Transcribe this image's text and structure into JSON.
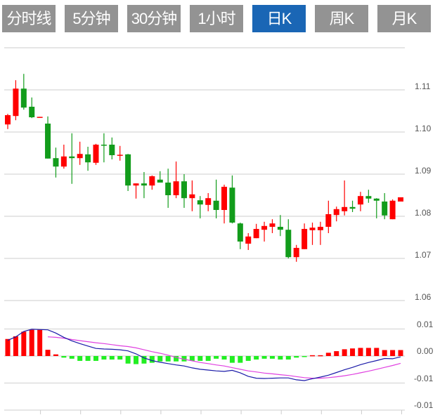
{
  "tabs": [
    {
      "label": "分时线",
      "active": false
    },
    {
      "label": "5分钟",
      "active": false
    },
    {
      "label": "30分钟",
      "active": false
    },
    {
      "label": "1小时",
      "active": false
    },
    {
      "label": "日K",
      "active": true
    },
    {
      "label": "周K",
      "active": false
    },
    {
      "label": "月K",
      "active": false
    }
  ],
  "colors": {
    "tab_bg": "#939393",
    "tab_active_bg": "#1a66b5",
    "up": "#ff0000",
    "down": "#129c1b",
    "macd_up": "#ff0000",
    "macd_down": "#22ee22",
    "dif": "#1a1aa8",
    "dea": "#e040e0",
    "grid": "#dddddd"
  },
  "chart_data": [
    {
      "type": "candlestick",
      "ylim": [
        1.06,
        1.12
      ],
      "y_ticks": [
        "1.11",
        "1.10",
        "1.09",
        "1.08",
        "1.07",
        "1.06"
      ],
      "grid": true,
      "ohlc": [
        [
          1.1018,
          1.1043,
          1.1007,
          1.104
        ],
        [
          1.1038,
          1.1123,
          1.1028,
          1.1103
        ],
        [
          1.1103,
          1.1138,
          1.1053,
          1.1058
        ],
        [
          1.106,
          1.1082,
          1.1033,
          1.1035
        ],
        [
          1.1035,
          1.1036,
          1.1034,
          1.1036
        ],
        [
          1.102,
          1.1037,
          1.0937,
          1.0937
        ],
        [
          1.0938,
          1.0963,
          1.0892,
          1.0918
        ],
        [
          1.0918,
          1.097,
          1.0913,
          1.0942
        ],
        [
          1.0942,
          1.0997,
          1.0877,
          1.0938
        ],
        [
          1.0938,
          1.0977,
          1.0922,
          1.0948
        ],
        [
          1.0947,
          1.0965,
          1.0908,
          1.0928
        ],
        [
          1.0927,
          1.0972,
          1.0922,
          1.097
        ],
        [
          1.097,
          1.0997,
          1.0928,
          1.0968
        ],
        [
          1.097,
          1.0987,
          1.0935,
          1.0945
        ],
        [
          1.0944,
          1.0967,
          1.0932,
          1.0946
        ],
        [
          1.0947,
          1.0948,
          1.086,
          1.0873
        ],
        [
          1.0873,
          1.0878,
          1.0842,
          1.0878
        ],
        [
          1.0878,
          1.0905,
          1.0843,
          1.0873
        ],
        [
          1.0873,
          1.0897,
          1.0863,
          1.0895
        ],
        [
          1.0887,
          1.0907,
          1.088,
          1.088
        ],
        [
          1.088,
          1.0913,
          1.082,
          1.085
        ],
        [
          1.085,
          1.093,
          1.0843,
          1.0883
        ],
        [
          1.0883,
          1.09,
          1.082,
          1.0843
        ],
        [
          1.0843,
          1.0885,
          1.0812,
          1.0852
        ],
        [
          1.0838,
          1.0848,
          1.0795,
          1.0828
        ],
        [
          1.0827,
          1.0855,
          1.0812,
          1.0843
        ],
        [
          1.0837,
          1.0887,
          1.0795,
          1.0815
        ],
        [
          1.0815,
          1.0875,
          1.0783,
          1.087
        ],
        [
          1.0868,
          1.0897,
          1.0783,
          1.0785
        ],
        [
          1.0783,
          1.0785,
          1.0722,
          1.074
        ],
        [
          1.0735,
          1.076,
          1.072,
          1.0752
        ],
        [
          1.0748,
          1.0782,
          1.0748,
          1.077
        ],
        [
          1.0768,
          1.0787,
          1.074,
          1.0777
        ],
        [
          1.0775,
          1.0793,
          1.076,
          1.0783
        ],
        [
          1.0775,
          1.0803,
          1.0753,
          1.0768
        ],
        [
          1.0768,
          1.0793,
          1.07,
          1.0703
        ],
        [
          1.0703,
          1.0732,
          1.0692,
          1.0725
        ],
        [
          1.0722,
          1.0783,
          1.0722,
          1.077
        ],
        [
          1.0767,
          1.0785,
          1.0732,
          1.0773
        ],
        [
          1.0767,
          1.0787,
          1.0732,
          1.0775
        ],
        [
          1.0775,
          1.0837,
          1.076,
          1.0805
        ],
        [
          1.0803,
          1.0823,
          1.0788,
          1.0817
        ],
        [
          1.0812,
          1.0885,
          1.0802,
          1.0822
        ],
        [
          1.0822,
          1.0837,
          1.081,
          1.0818
        ],
        [
          1.0828,
          1.0858,
          1.0812,
          1.0848
        ],
        [
          1.0848,
          1.0863,
          1.0832,
          1.0842
        ],
        [
          1.0842,
          1.0843,
          1.0795,
          1.0837
        ],
        [
          1.0835,
          1.0855,
          1.0793,
          1.0802
        ],
        [
          1.0793,
          1.084,
          1.0793,
          1.0837
        ],
        [
          1.0835,
          1.0845,
          1.0835,
          1.0845
        ]
      ]
    },
    {
      "type": "bar+line",
      "ylim": [
        -0.02,
        0.01
      ],
      "y_ticks": [
        "0.01",
        "0.00",
        "-0.01",
        "-0.01"
      ],
      "grid": true,
      "histogram": [
        0.0063,
        0.0073,
        0.009,
        0.0097,
        0.0097,
        0.0023,
        0.0006,
        -0.0006,
        -0.001,
        -0.0018,
        -0.0018,
        -0.0018,
        -0.0013,
        -0.0013,
        -0.0013,
        -0.0028,
        -0.003,
        -0.0028,
        -0.0025,
        -0.002,
        -0.002,
        -0.002,
        -0.002,
        -0.0018,
        -0.0018,
        -0.0018,
        -0.001,
        -0.0013,
        -0.0025,
        -0.0025,
        -0.0018,
        -0.0013,
        -0.001,
        -0.001,
        -0.0013,
        -0.0013,
        -0.0006,
        -0.0003,
        0.0003,
        0.0003,
        0.0012,
        0.0018,
        0.0025,
        0.0028,
        0.003,
        0.003,
        0.003,
        0.0022,
        0.0022,
        0.0022
      ],
      "dif": [
        0.0058,
        0.0071,
        0.0091,
        0.0099,
        0.0098,
        0.0097,
        0.0085,
        0.0069,
        0.0056,
        0.0046,
        0.0037,
        0.0028,
        0.0026,
        0.0025,
        0.0023,
        0.0019,
        0.0008,
        -0.0007,
        -0.0017,
        -0.0023,
        -0.0028,
        -0.0033,
        -0.0037,
        -0.0044,
        -0.0049,
        -0.0052,
        -0.0055,
        -0.0057,
        -0.0053,
        -0.0062,
        -0.0075,
        -0.0082,
        -0.0083,
        -0.0082,
        -0.0081,
        -0.0081,
        -0.0088,
        -0.0091,
        -0.0084,
        -0.0078,
        -0.0071,
        -0.0061,
        -0.0051,
        -0.0042,
        -0.0032,
        -0.0024,
        -0.0017,
        -0.0009,
        -0.001,
        -0.0003
      ],
      "dea": [
        null,
        null,
        null,
        null,
        null,
        0.0071,
        0.0069,
        0.0066,
        0.0061,
        0.0057,
        0.0053,
        0.0049,
        0.0046,
        0.0042,
        0.0038,
        0.0035,
        0.003,
        0.0023,
        0.0016,
        0.001,
        0.0003,
        -0.0005,
        -0.0012,
        -0.0018,
        -0.0024,
        -0.0028,
        -0.0033,
        -0.0037,
        -0.0043,
        -0.0049,
        -0.0055,
        -0.0059,
        -0.0063,
        -0.0066,
        -0.0069,
        -0.0072,
        -0.0076,
        -0.008,
        -0.0082,
        -0.0082,
        -0.008,
        -0.0077,
        -0.0073,
        -0.0068,
        -0.0062,
        -0.0056,
        -0.0049,
        -0.0042,
        -0.0035,
        -0.0027
      ]
    }
  ]
}
